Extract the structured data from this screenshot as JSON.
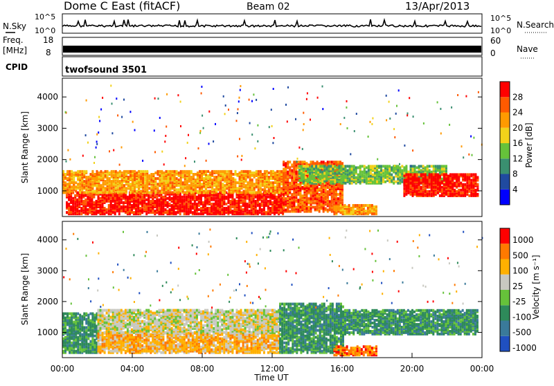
{
  "header": {
    "station": "Dome C East (fitACF)",
    "beam": "Beam 02",
    "date": "13/Apr/2013"
  },
  "top_panels": {
    "nsky_label": "N.Sky",
    "nsky_ticks": [
      "10^5",
      "10^0"
    ],
    "nsearch_label": "N.Search",
    "nsearch_ticks": [
      "10^5",
      "10^0"
    ],
    "freq_label_1": "Freq.",
    "freq_label_2": "[MHz]",
    "freq_ticks": [
      "18",
      "8"
    ],
    "nave_label": "Nave",
    "nave_ticks": [
      "60",
      "0"
    ],
    "cpid_label": "CPID",
    "cpid_value": "twofsound 3501"
  },
  "chart_data": [
    {
      "type": "heatmap",
      "name": "power-panel",
      "ylabel": "Slant Range [km]",
      "xlabel": "",
      "xlim": [
        0,
        24
      ],
      "ylim": [
        180,
        4600
      ],
      "yticks": [
        "1000",
        "2000",
        "3000",
        "4000"
      ],
      "colorbar_label": "Power [dB]",
      "colorbar_ticks": [
        "4",
        "8",
        "12",
        "16",
        "20",
        "24",
        "28"
      ],
      "colorscale": [
        "#0000ff",
        "#204aa0",
        "#3a8f70",
        "#66c23a",
        "#f2d21a",
        "#ff9a00",
        "#ff5a00",
        "#ff0000"
      ],
      "regions": [
        {
          "t": [
            0.2,
            12.6
          ],
          "r": [
            220,
            900
          ],
          "level": 7
        },
        {
          "t": [
            0.0,
            12.6
          ],
          "r": [
            900,
            1600
          ],
          "level": 5
        },
        {
          "t": [
            12.6,
            16.0
          ],
          "r": [
            300,
            1900
          ],
          "level": 6
        },
        {
          "t": [
            13.5,
            22.0
          ],
          "r": [
            1200,
            1750
          ],
          "level": 3
        },
        {
          "t": [
            19.5,
            23.8
          ],
          "r": [
            800,
            1500
          ],
          "level": 7
        },
        {
          "t": [
            15.5,
            18.0
          ],
          "r": [
            220,
            520
          ],
          "level": 5
        }
      ]
    },
    {
      "type": "heatmap",
      "name": "velocity-panel",
      "ylabel": "Slant Range [km]",
      "xlabel": "Time UT",
      "xlim": [
        0,
        24
      ],
      "ylim": [
        180,
        4600
      ],
      "yticks": [
        "1000",
        "2000",
        "3000",
        "4000"
      ],
      "xticks": [
        "00:00",
        "04:00",
        "08:00",
        "12:00",
        "16:00",
        "20:00",
        "00:00"
      ],
      "colorbar_label": "Velocity [m s⁻¹]",
      "colorbar_ticks": [
        "1000",
        "500",
        "100",
        "25",
        "-25",
        "-100",
        "-500",
        "-1000"
      ],
      "colorscale": [
        "#2050c0",
        "#3a7a9a",
        "#2e8a5a",
        "#66c23a",
        "#c8c8c0",
        "#ffb000",
        "#ff7a00",
        "#ff0000"
      ],
      "regions": [
        {
          "t": [
            0.0,
            2.0
          ],
          "r": [
            300,
            1600
          ],
          "level": 2
        },
        {
          "t": [
            2.0,
            12.4
          ],
          "r": [
            300,
            950
          ],
          "level": 5
        },
        {
          "t": [
            2.0,
            12.4
          ],
          "r": [
            950,
            1700
          ],
          "level": 4
        },
        {
          "t": [
            12.4,
            16.0
          ],
          "r": [
            300,
            1900
          ],
          "level": 2
        },
        {
          "t": [
            16.0,
            23.8
          ],
          "r": [
            900,
            1700
          ],
          "level": 2
        },
        {
          "t": [
            15.5,
            18.0
          ],
          "r": [
            220,
            500
          ],
          "level": 6
        }
      ]
    }
  ]
}
